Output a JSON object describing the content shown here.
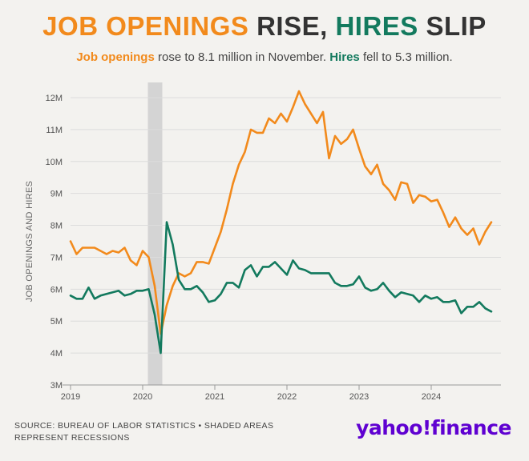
{
  "header": {
    "title_part1": "JOB OPENINGS",
    "title_part2": " RISE, ",
    "title_part3": "HIRES",
    "title_part4": " SLIP",
    "subtitle_part1": "Job openings",
    "subtitle_part2": " rose to 8.1 million in November. ",
    "subtitle_part3": "Hires",
    "subtitle_part4": " fell to 5.3 million."
  },
  "footer": {
    "source_line1": "SOURCE: BUREAU OF LABOR STATISTICS • SHADED AREAS",
    "source_line2": "REPRESENT RECESSIONS",
    "logo": "yahoo!finance"
  },
  "colors": {
    "openings": "#f28a1c",
    "hires": "#137a5e",
    "recession": "#d4d4d4",
    "grid": "#dcdcdc",
    "text": "#555555"
  },
  "chart_data": {
    "type": "line",
    "title": "JOB OPENINGS RISE, HIRES SLIP",
    "ylabel": "JOB OPENINGS AND HIRES",
    "xlabel": "",
    "ylim": [
      3,
      12.3
    ],
    "xlim": [
      "2019-01",
      "2024-11"
    ],
    "y_ticks": [
      3,
      4,
      5,
      6,
      7,
      8,
      9,
      10,
      11,
      12
    ],
    "y_tick_labels": [
      "3M",
      "4M",
      "5M",
      "6M",
      "7M",
      "8M",
      "9M",
      "10M",
      "11M",
      "12M"
    ],
    "x_tick_labels": [
      "2019",
      "2020",
      "2021",
      "2022",
      "2023",
      "2024"
    ],
    "grid": "horizontal",
    "recession": {
      "start": "2020-02",
      "end": "2020-04"
    },
    "series": [
      {
        "name": "Job openings",
        "color": "#f28a1c",
        "values": [
          7.5,
          7.1,
          7.3,
          7.3,
          7.3,
          7.2,
          7.1,
          7.2,
          7.15,
          7.3,
          6.9,
          6.75,
          7.2,
          7.0,
          6.1,
          4.6,
          5.5,
          6.1,
          6.5,
          6.4,
          6.5,
          6.85,
          6.85,
          6.8,
          7.3,
          7.8,
          8.5,
          9.3,
          9.9,
          10.3,
          11.0,
          10.9,
          10.9,
          11.35,
          11.2,
          11.5,
          11.25,
          11.7,
          12.2,
          11.8,
          11.5,
          11.2,
          11.55,
          10.1,
          10.8,
          10.55,
          10.7,
          11.0,
          10.4,
          9.85,
          9.6,
          9.9,
          9.3,
          9.1,
          8.8,
          9.35,
          9.3,
          8.7,
          8.95,
          8.9,
          8.75,
          8.8,
          8.4,
          7.95,
          8.25,
          7.9,
          7.7,
          7.9,
          7.4,
          7.8,
          8.1
        ]
      },
      {
        "name": "Hires",
        "color": "#137a5e",
        "values": [
          5.8,
          5.7,
          5.7,
          6.05,
          5.7,
          5.8,
          5.85,
          5.9,
          5.95,
          5.8,
          5.85,
          5.95,
          5.95,
          6.0,
          5.2,
          4.0,
          8.1,
          7.4,
          6.3,
          6.0,
          6.0,
          6.1,
          5.9,
          5.6,
          5.65,
          5.85,
          6.2,
          6.2,
          6.05,
          6.6,
          6.75,
          6.4,
          6.7,
          6.7,
          6.85,
          6.65,
          6.45,
          6.9,
          6.65,
          6.6,
          6.5,
          6.5,
          6.5,
          6.5,
          6.2,
          6.1,
          6.1,
          6.15,
          6.4,
          6.05,
          5.95,
          6.0,
          6.2,
          5.95,
          5.75,
          5.9,
          5.85,
          5.8,
          5.6,
          5.8,
          5.7,
          5.75,
          5.6,
          5.6,
          5.65,
          5.25,
          5.45,
          5.45,
          5.6,
          5.4,
          5.3
        ]
      }
    ]
  }
}
